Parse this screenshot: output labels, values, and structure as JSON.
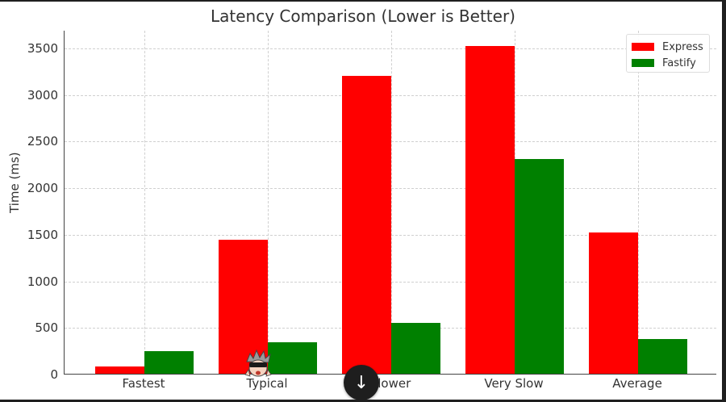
{
  "chart_data": {
    "type": "bar",
    "title": "Latency Comparison (Lower is Better)",
    "xlabel": "",
    "ylabel": "Time (ms)",
    "categories": [
      "Fastest",
      "Typical",
      "Slower",
      "Very Slow",
      "Average"
    ],
    "series": [
      {
        "name": "Express",
        "color": "#ff0000",
        "values": [
          80,
          1440,
          3200,
          3520,
          1515
        ]
      },
      {
        "name": "Fastify",
        "color": "#008000",
        "values": [
          240,
          340,
          545,
          2300,
          375
        ]
      }
    ],
    "ylim": [
      0,
      3690
    ],
    "yticks": [
      0,
      500,
      1000,
      1500,
      2000,
      2500,
      3000,
      3500
    ],
    "grid": true,
    "legend_position": "upper right"
  },
  "labels": {
    "title": "Latency Comparison (Lower is Better)",
    "ylabel": "Time (ms)",
    "yticks": [
      "0",
      "500",
      "1000",
      "1500",
      "2000",
      "2500",
      "3000",
      "3500"
    ],
    "xticks": [
      "Fastest",
      "Typical",
      "Slower",
      "Very Slow",
      "Average"
    ],
    "legend": [
      "Express",
      "Fastify"
    ]
  },
  "overlay": {
    "scroll_down_icon": "↓"
  }
}
